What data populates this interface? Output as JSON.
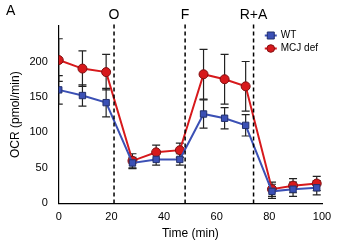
{
  "chart_data": {
    "type": "line",
    "title": "A",
    "x_label": "Time (min)",
    "y_label": "OCR (pmol/min)",
    "xlim": [
      0,
      100
    ],
    "xticks": [
      0,
      20,
      40,
      60,
      80,
      100
    ],
    "ylim": [
      0,
      250
    ],
    "yticks": [
      0,
      50,
      100,
      150,
      200
    ],
    "grid": false,
    "legend": "upper right",
    "annotations": [
      {
        "x": 21,
        "label": "O"
      },
      {
        "x": 48,
        "label": "F"
      },
      {
        "x": 74,
        "label": "R+A"
      }
    ],
    "x": [
      0,
      9,
      18,
      28,
      37,
      46,
      55,
      63,
      71,
      81,
      89,
      98
    ],
    "series": [
      {
        "name": "WT",
        "color": "#3b50b5",
        "marker": "square",
        "values": [
          160,
          152,
          142,
          57,
          62,
          62,
          126,
          120,
          110,
          17,
          20,
          22
        ],
        "errors": [
          20,
          15,
          20,
          8,
          8,
          8,
          20,
          15,
          15,
          10,
          10,
          10
        ]
      },
      {
        "name": "MCJ def",
        "color": "#d7191c",
        "marker": "circle",
        "values": [
          202,
          190,
          185,
          60,
          72,
          75,
          182,
          175,
          165,
          20,
          25,
          28
        ],
        "errors": [
          30,
          25,
          25,
          10,
          10,
          10,
          35,
          35,
          35,
          10,
          10,
          10
        ]
      }
    ]
  }
}
